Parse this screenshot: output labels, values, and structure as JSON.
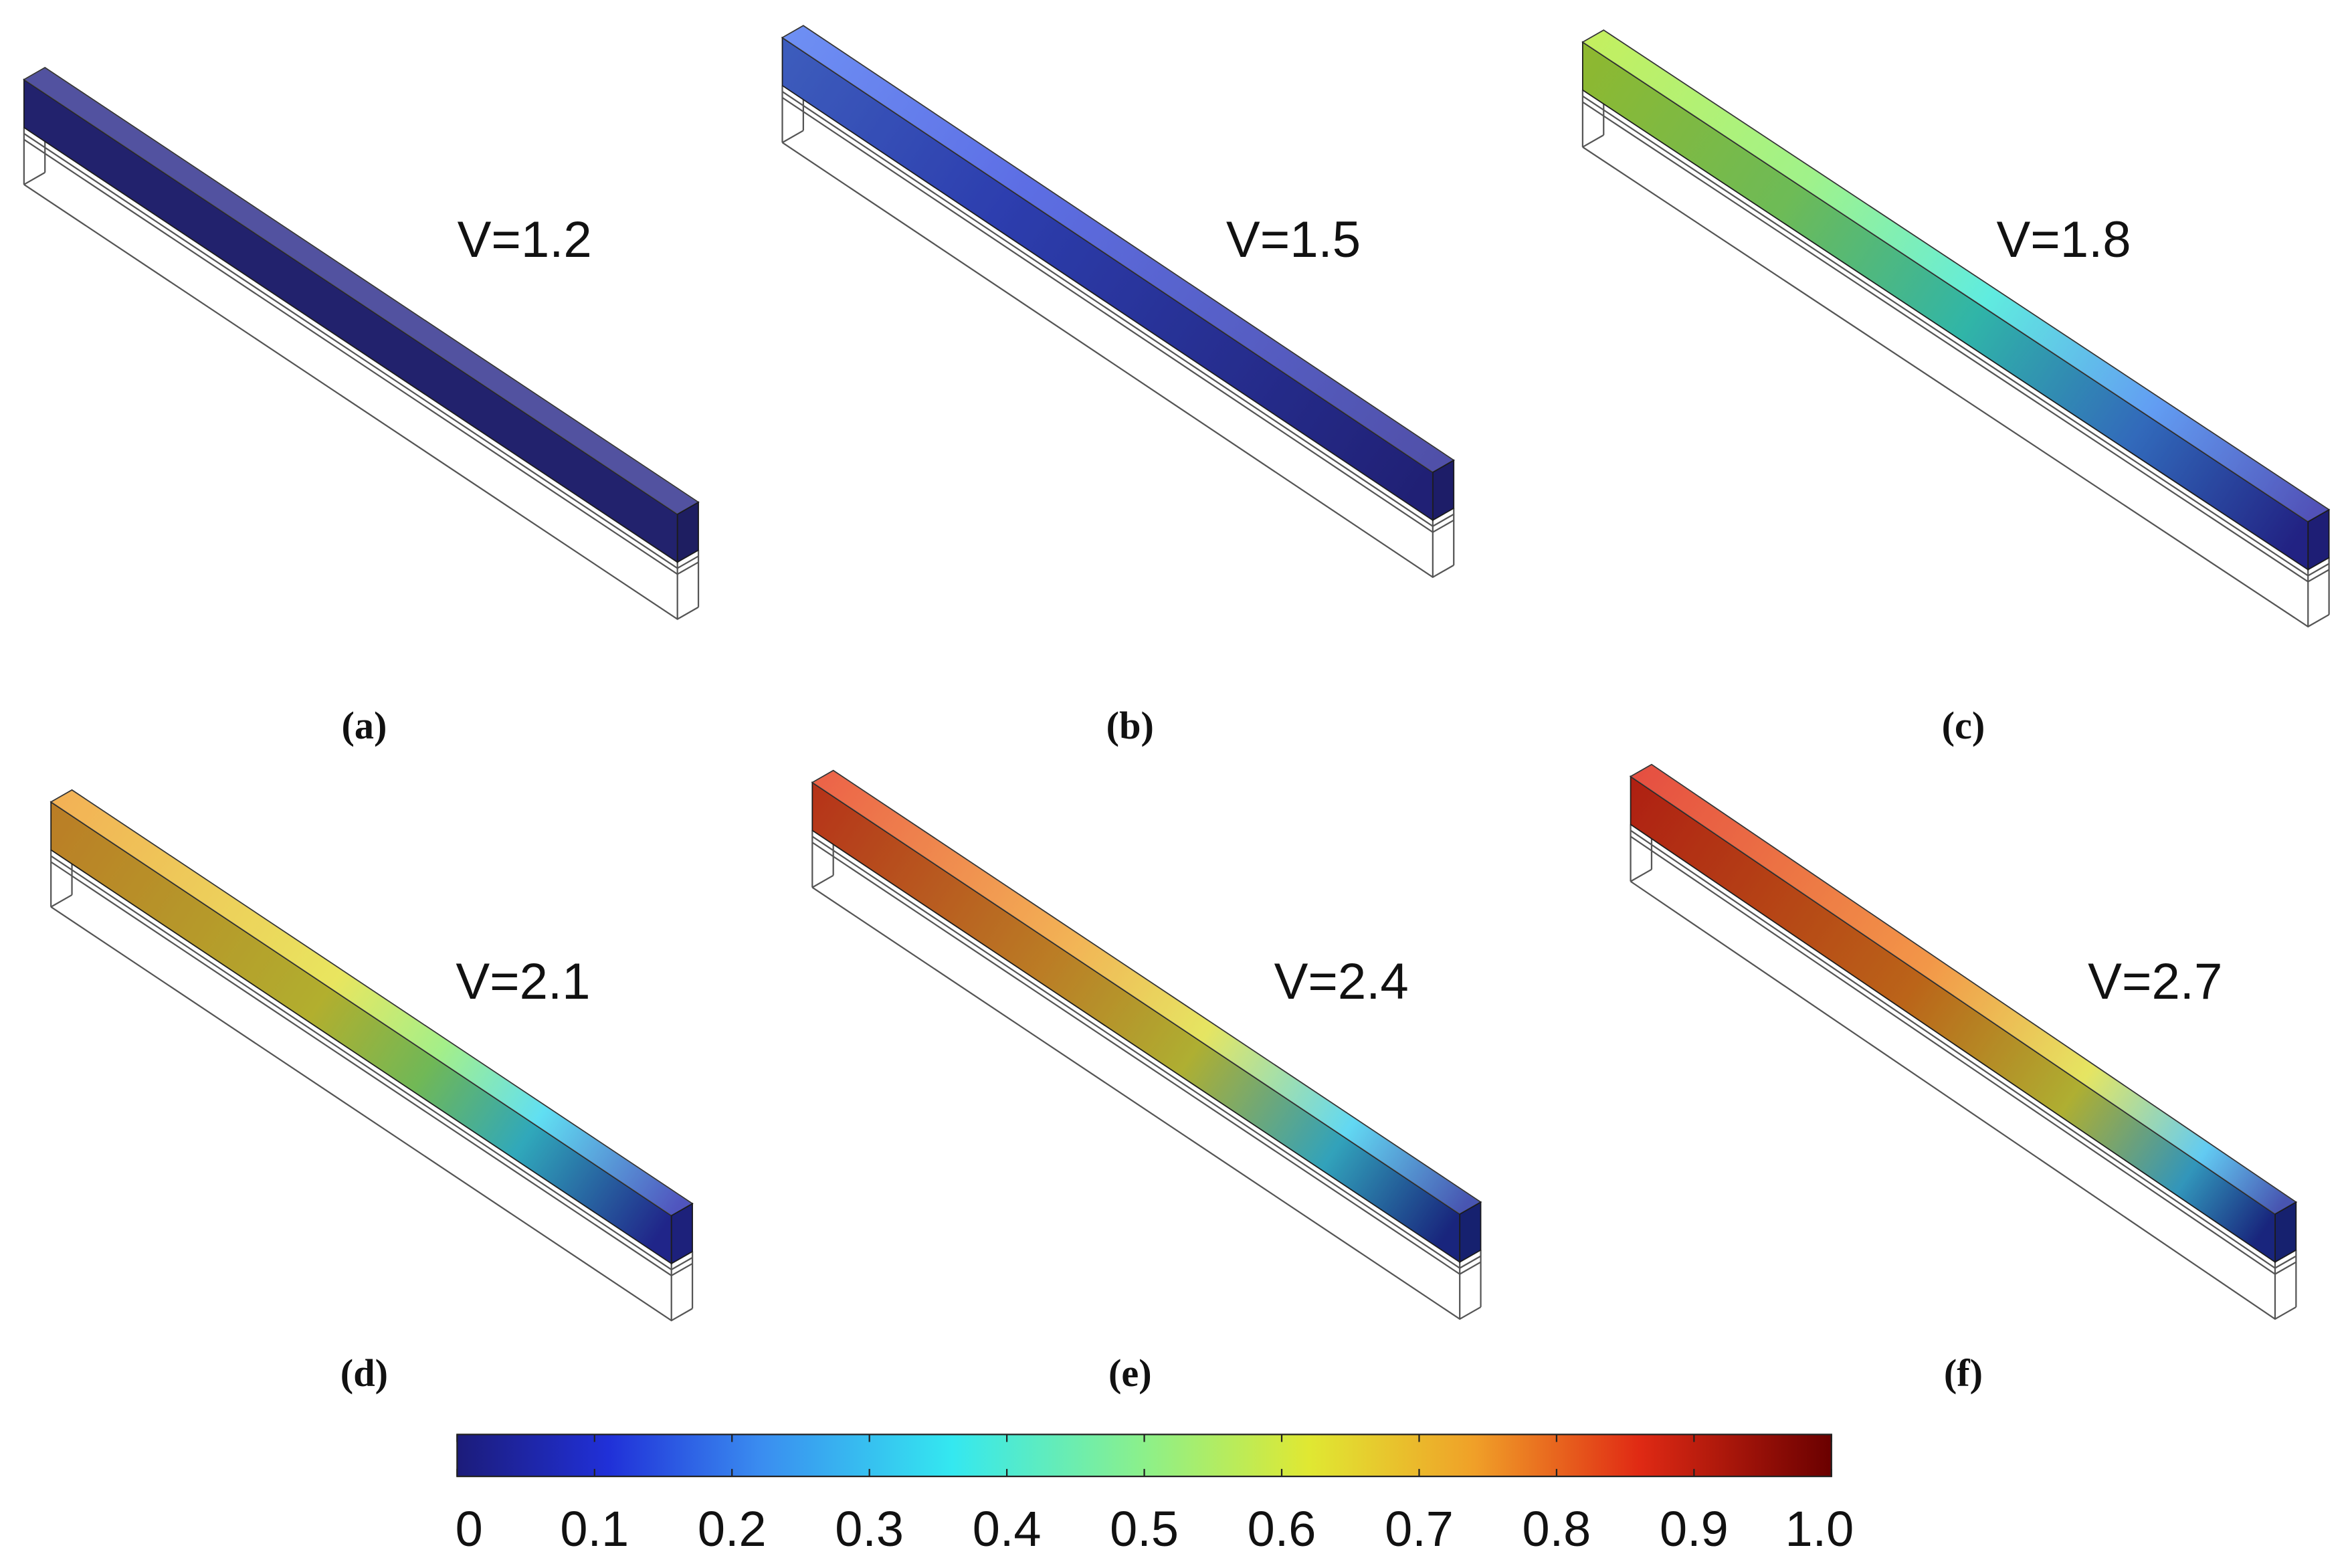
{
  "panels": [
    {
      "voltage": "V=1.2",
      "label": "(a)"
    },
    {
      "voltage": "V=1.5",
      "label": "(b)"
    },
    {
      "voltage": "V=1.8",
      "label": "(c)"
    },
    {
      "voltage": "V=2.1",
      "label": "(d)"
    },
    {
      "voltage": "V=2.4",
      "label": "(e)"
    },
    {
      "voltage": "V=2.7",
      "label": "(f)"
    }
  ],
  "colorbar": {
    "lim": [
      0,
      1
    ],
    "ticks": [
      0,
      0.1,
      0.2,
      0.3,
      0.4,
      0.5,
      0.6,
      0.7,
      0.8,
      0.9,
      {
        "value": 1,
        "label": "1.0"
      }
    ]
  }
}
